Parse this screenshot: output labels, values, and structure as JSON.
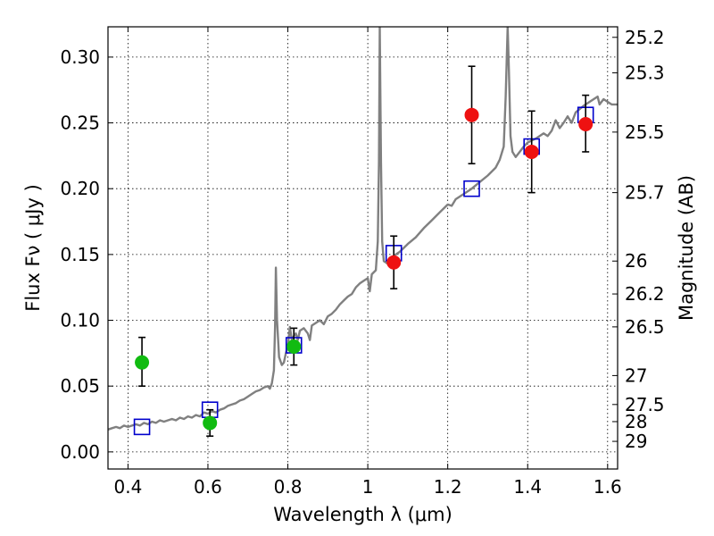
{
  "chart_data": {
    "type": "scatter",
    "xlabel": "Wavelength  λ (μm)",
    "ylabel": "Flux  Fν  ( μJy )",
    "ylabel_right": "Magnitude (AB)",
    "xlim": [
      0.35,
      1.625
    ],
    "ylim": [
      -0.013,
      0.323
    ],
    "x_ticks": [
      0.4,
      0.6,
      0.8,
      1.0,
      1.2,
      1.4,
      1.6
    ],
    "x_tick_labels": [
      "0.4",
      "0.6",
      "0.8",
      "1",
      "1.2",
      "1.4",
      "1.6"
    ],
    "y_ticks": [
      0.0,
      0.05,
      0.1,
      0.15,
      0.2,
      0.25,
      0.3
    ],
    "y_tick_labels": [
      "0.00",
      "0.05",
      "0.10",
      "0.15",
      "0.20",
      "0.25",
      "0.30"
    ],
    "right_ticks": [
      {
        "flux": 0.315,
        "label": "25.2"
      },
      {
        "flux": 0.288,
        "label": "25.3"
      },
      {
        "flux": 0.243,
        "label": "25.5"
      },
      {
        "flux": 0.197,
        "label": "25.7"
      },
      {
        "flux": 0.145,
        "label": "26"
      },
      {
        "flux": 0.12,
        "label": "26.2"
      },
      {
        "flux": 0.095,
        "label": "26.5"
      },
      {
        "flux": 0.058,
        "label": "27"
      },
      {
        "flux": 0.036,
        "label": "27.5"
      },
      {
        "flux": 0.023,
        "label": "28"
      },
      {
        "flux": 0.008,
        "label": "29"
      }
    ],
    "grid": true,
    "colors": {
      "template": "#808080",
      "model": "#0000cc",
      "detection": "#ee1111",
      "other": "#11bb11",
      "errorbar": "#000000"
    },
    "series": [
      {
        "kind": "line",
        "color": "#808080",
        "points": [
          [
            0.35,
            0.017
          ],
          [
            0.36,
            0.018
          ],
          [
            0.37,
            0.019
          ],
          [
            0.38,
            0.018
          ],
          [
            0.39,
            0.02
          ],
          [
            0.4,
            0.019
          ],
          [
            0.41,
            0.02
          ],
          [
            0.42,
            0.021
          ],
          [
            0.43,
            0.02
          ],
          [
            0.44,
            0.022
          ],
          [
            0.45,
            0.021
          ],
          [
            0.46,
            0.023
          ],
          [
            0.47,
            0.022
          ],
          [
            0.48,
            0.024
          ],
          [
            0.49,
            0.023
          ],
          [
            0.5,
            0.024
          ],
          [
            0.51,
            0.025
          ],
          [
            0.52,
            0.024
          ],
          [
            0.53,
            0.026
          ],
          [
            0.54,
            0.025
          ],
          [
            0.55,
            0.027
          ],
          [
            0.56,
            0.026
          ],
          [
            0.57,
            0.028
          ],
          [
            0.58,
            0.027
          ],
          [
            0.59,
            0.03
          ],
          [
            0.6,
            0.029
          ],
          [
            0.61,
            0.031
          ],
          [
            0.62,
            0.03
          ],
          [
            0.63,
            0.032
          ],
          [
            0.64,
            0.033
          ],
          [
            0.65,
            0.035
          ],
          [
            0.66,
            0.036
          ],
          [
            0.67,
            0.037
          ],
          [
            0.68,
            0.039
          ],
          [
            0.69,
            0.04
          ],
          [
            0.7,
            0.042
          ],
          [
            0.71,
            0.044
          ],
          [
            0.72,
            0.046
          ],
          [
            0.73,
            0.047
          ],
          [
            0.74,
            0.049
          ],
          [
            0.75,
            0.05
          ],
          [
            0.755,
            0.048
          ],
          [
            0.76,
            0.052
          ],
          [
            0.765,
            0.062
          ],
          [
            0.768,
            0.095
          ],
          [
            0.77,
            0.14
          ],
          [
            0.773,
            0.1
          ],
          [
            0.778,
            0.072
          ],
          [
            0.785,
            0.066
          ],
          [
            0.79,
            0.068
          ],
          [
            0.795,
            0.075
          ],
          [
            0.8,
            0.08
          ],
          [
            0.805,
            0.095
          ],
          [
            0.81,
            0.085
          ],
          [
            0.815,
            0.088
          ],
          [
            0.82,
            0.09
          ],
          [
            0.825,
            0.085
          ],
          [
            0.83,
            0.092
          ],
          [
            0.84,
            0.094
          ],
          [
            0.85,
            0.09
          ],
          [
            0.855,
            0.085
          ],
          [
            0.86,
            0.096
          ],
          [
            0.87,
            0.098
          ],
          [
            0.88,
            0.1
          ],
          [
            0.89,
            0.097
          ],
          [
            0.9,
            0.103
          ],
          [
            0.91,
            0.105
          ],
          [
            0.92,
            0.108
          ],
          [
            0.93,
            0.112
          ],
          [
            0.94,
            0.115
          ],
          [
            0.95,
            0.118
          ],
          [
            0.96,
            0.12
          ],
          [
            0.97,
            0.125
          ],
          [
            0.98,
            0.128
          ],
          [
            0.99,
            0.13
          ],
          [
            1.0,
            0.132
          ],
          [
            1.005,
            0.122
          ],
          [
            1.01,
            0.135
          ],
          [
            1.02,
            0.138
          ],
          [
            1.025,
            0.16
          ],
          [
            1.028,
            0.22
          ],
          [
            1.03,
            0.323
          ],
          [
            1.033,
            0.22
          ],
          [
            1.036,
            0.16
          ],
          [
            1.04,
            0.145
          ],
          [
            1.05,
            0.143
          ],
          [
            1.06,
            0.148
          ],
          [
            1.07,
            0.15
          ],
          [
            1.08,
            0.152
          ],
          [
            1.09,
            0.155
          ],
          [
            1.1,
            0.158
          ],
          [
            1.12,
            0.163
          ],
          [
            1.14,
            0.17
          ],
          [
            1.16,
            0.176
          ],
          [
            1.18,
            0.182
          ],
          [
            1.2,
            0.188
          ],
          [
            1.21,
            0.187
          ],
          [
            1.22,
            0.192
          ],
          [
            1.24,
            0.196
          ],
          [
            1.26,
            0.2
          ],
          [
            1.28,
            0.205
          ],
          [
            1.3,
            0.21
          ],
          [
            1.32,
            0.216
          ],
          [
            1.33,
            0.222
          ],
          [
            1.34,
            0.232
          ],
          [
            1.345,
            0.27
          ],
          [
            1.35,
            0.323
          ],
          [
            1.353,
            0.29
          ],
          [
            1.357,
            0.24
          ],
          [
            1.362,
            0.228
          ],
          [
            1.37,
            0.224
          ],
          [
            1.38,
            0.228
          ],
          [
            1.39,
            0.232
          ],
          [
            1.4,
            0.235
          ],
          [
            1.42,
            0.238
          ],
          [
            1.44,
            0.242
          ],
          [
            1.45,
            0.24
          ],
          [
            1.46,
            0.244
          ],
          [
            1.47,
            0.252
          ],
          [
            1.48,
            0.246
          ],
          [
            1.49,
            0.25
          ],
          [
            1.5,
            0.255
          ],
          [
            1.51,
            0.25
          ],
          [
            1.52,
            0.258
          ],
          [
            1.54,
            0.263
          ],
          [
            1.56,
            0.267
          ],
          [
            1.575,
            0.27
          ],
          [
            1.58,
            0.264
          ],
          [
            1.59,
            0.268
          ],
          [
            1.6,
            0.266
          ],
          [
            1.61,
            0.264
          ],
          [
            1.625,
            0.264
          ]
        ]
      },
      {
        "kind": "square",
        "color": "#0000cc",
        "points": [
          [
            0.435,
            0.019
          ],
          [
            0.605,
            0.032
          ],
          [
            0.815,
            0.081
          ],
          [
            1.065,
            0.151
          ],
          [
            1.26,
            0.2
          ],
          [
            1.41,
            0.232
          ],
          [
            1.545,
            0.256
          ]
        ]
      },
      {
        "kind": "circle",
        "color": "#11bb11",
        "points": [
          {
            "x": 0.435,
            "y": 0.068,
            "lo": 0.05,
            "hi": 0.087
          },
          {
            "x": 0.605,
            "y": 0.022,
            "lo": 0.012,
            "hi": 0.032
          },
          {
            "x": 0.815,
            "y": 0.08,
            "lo": 0.066,
            "hi": 0.094
          }
        ]
      },
      {
        "kind": "circle",
        "color": "#ee1111",
        "points": [
          {
            "x": 1.065,
            "y": 0.144,
            "lo": 0.124,
            "hi": 0.164
          },
          {
            "x": 1.26,
            "y": 0.256,
            "lo": 0.219,
            "hi": 0.293
          },
          {
            "x": 1.41,
            "y": 0.228,
            "lo": 0.197,
            "hi": 0.259
          },
          {
            "x": 1.545,
            "y": 0.249,
            "lo": 0.228,
            "hi": 0.271
          }
        ]
      }
    ]
  }
}
